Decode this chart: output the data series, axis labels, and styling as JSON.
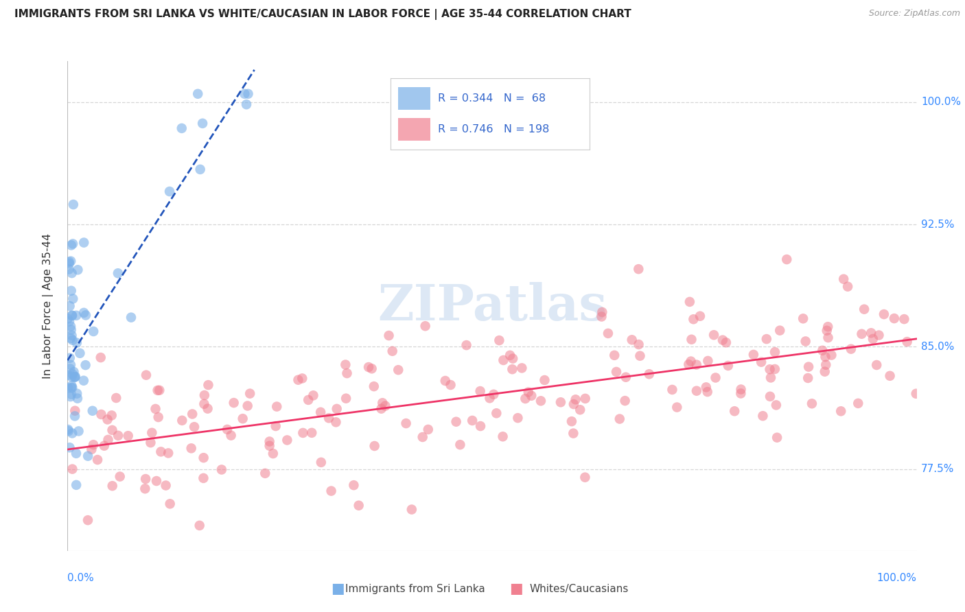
{
  "title": "IMMIGRANTS FROM SRI LANKA VS WHITE/CAUCASIAN IN LABOR FORCE | AGE 35-44 CORRELATION CHART",
  "source": "Source: ZipAtlas.com",
  "ylabel": "In Labor Force | Age 35-44",
  "xlim": [
    0.0,
    1.0
  ],
  "ylim": [
    0.725,
    1.025
  ],
  "yticks": [
    0.775,
    0.85,
    0.925,
    1.0
  ],
  "ytick_labels": [
    "77.5%",
    "85.0%",
    "92.5%",
    "100.0%"
  ],
  "background_color": "#ffffff",
  "grid_color": "#cccccc",
  "blue_R": 0.344,
  "blue_N": 68,
  "pink_R": 0.746,
  "pink_N": 198,
  "blue_color": "#7ab0e8",
  "pink_color": "#f08090",
  "blue_line_color": "#2255bb",
  "pink_line_color": "#ee3366",
  "blue_edge_color": "#4488cc",
  "pink_edge_color": "#cc4466",
  "watermark_color": "#dde8f5",
  "title_color": "#222222",
  "source_color": "#999999",
  "label_color": "#3388ff",
  "ylabel_color": "#333333"
}
